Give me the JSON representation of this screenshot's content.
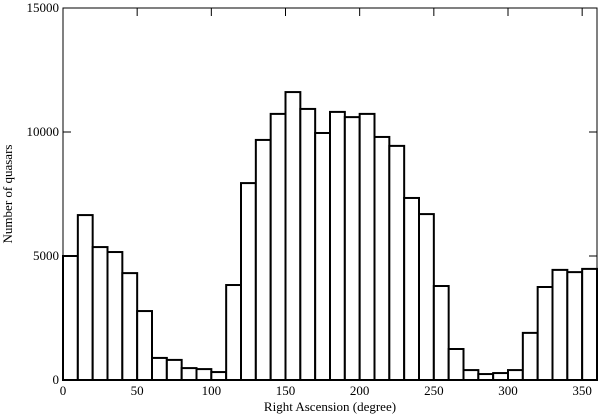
{
  "chart_data": {
    "type": "histogram",
    "x_label": "Right Ascension (degree)",
    "y_label": "Number of quasars",
    "bins": [
      0,
      10,
      20,
      30,
      40,
      50,
      60,
      70,
      80,
      90,
      100,
      110,
      120,
      130,
      140,
      150,
      160,
      170,
      180,
      190,
      200,
      210,
      220,
      230,
      240,
      250,
      260,
      270,
      280,
      290,
      300,
      310,
      320,
      330,
      340,
      350,
      360
    ],
    "values": [
      5000,
      6650,
      5360,
      5160,
      4310,
      2780,
      890,
      810,
      480,
      440,
      320,
      3830,
      7940,
      9680,
      10730,
      11610,
      10930,
      9960,
      10810,
      10600,
      10730,
      9800,
      9440,
      7340,
      6690,
      3790,
      1250,
      400,
      240,
      280,
      400,
      1900,
      3750,
      4440,
      4350,
      4480
    ],
    "color": "#ffffff",
    "edge_color": "#000000",
    "xlim": [
      0,
      360
    ],
    "xticks": [
      0,
      50,
      100,
      150,
      200,
      250,
      300,
      350
    ],
    "ylim": [
      0,
      15000
    ],
    "yticks": [
      0,
      5000,
      10000,
      15000
    ]
  }
}
